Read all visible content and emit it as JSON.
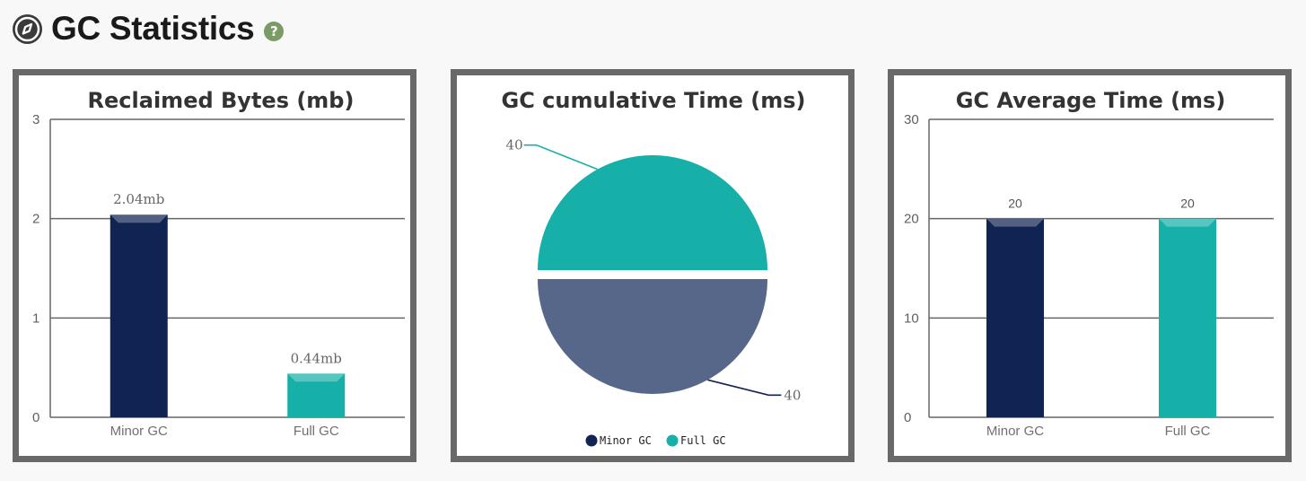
{
  "header": {
    "title": "GC Statistics",
    "help_icon": "question-mark-icon",
    "title_icon": "compass-icon"
  },
  "colors": {
    "minor": "#112352",
    "full": "#17b0a8",
    "minor_slice": "#566789"
  },
  "chart_data": [
    {
      "type": "bar",
      "title": "Reclaimed Bytes (mb)",
      "categories": [
        "Minor GC",
        "Full GC"
      ],
      "values": [
        2.04,
        0.44
      ],
      "data_labels": [
        "2.04mb",
        "0.44mb"
      ],
      "yticks": [
        "0",
        "1",
        "2",
        "3"
      ],
      "ylim": [
        0,
        3
      ],
      "grid": true
    },
    {
      "type": "pie",
      "title": "GC cumulative Time (ms)",
      "labels": [
        "Minor GC",
        "Full GC"
      ],
      "values": [
        40,
        40
      ],
      "data_labels": [
        "40",
        "40"
      ],
      "legend": [
        "Minor GC",
        "Full GC"
      ],
      "legend_position": "bottom"
    },
    {
      "type": "bar",
      "title": "GC Average Time (ms)",
      "categories": [
        "Minor GC",
        "Full GC"
      ],
      "values": [
        20,
        20
      ],
      "data_labels": [
        "20",
        "20"
      ],
      "yticks": [
        "0",
        "10",
        "20",
        "30"
      ],
      "ylim": [
        0,
        30
      ],
      "grid": true
    }
  ]
}
